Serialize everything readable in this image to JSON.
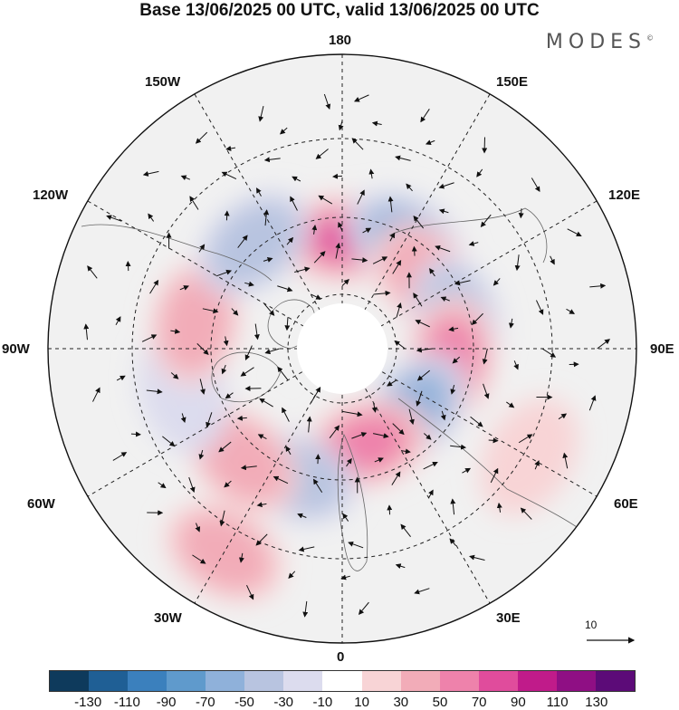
{
  "title": "Base 13/06/2025 00 UTC, valid 13/06/2025 00 UTC",
  "brand": "MODES",
  "brand_mark": "©",
  "longitude_labels": {
    "n180": "180",
    "w150": "150W",
    "e150": "150E",
    "w120": "120W",
    "e120": "120E",
    "w90": "90W",
    "e90": "90E",
    "w60": "60W",
    "e60": "60E",
    "w30": "30W",
    "e30": "30E",
    "s0": "0"
  },
  "reference_vector": "10",
  "colorbar": {
    "ticks": [
      "-130",
      "-110",
      "-90",
      "-70",
      "-50",
      "-30",
      "-10",
      "10",
      "30",
      "50",
      "70",
      "90",
      "110",
      "130"
    ],
    "colors": [
      "#0e3a5c",
      "#1f5f95",
      "#3b80bd",
      "#5f9acc",
      "#8fb1da",
      "#b8c4e0",
      "#dcdcee",
      "#ffffff",
      "#f8d4d6",
      "#f2acb8",
      "#ee82ab",
      "#e04c9c",
      "#c01b8a",
      "#8f0f84",
      "#5c0b78"
    ]
  },
  "anomaly_cells": [
    {
      "lon": 180,
      "lat": 62,
      "value": 80
    },
    {
      "lon": 150,
      "lat": 58,
      "value": -60
    },
    {
      "lon": 130,
      "lat": 62,
      "value": 50
    },
    {
      "lon": 105,
      "lat": 60,
      "value": -50
    },
    {
      "lon": 85,
      "lat": 62,
      "value": 70
    },
    {
      "lon": 50,
      "lat": 66,
      "value": -60
    },
    {
      "lon": 15,
      "lat": 65,
      "value": 75
    },
    {
      "lon": -20,
      "lat": 55,
      "value": -40
    },
    {
      "lon": -42,
      "lat": 52,
      "value": 40
    },
    {
      "lon": -75,
      "lat": 48,
      "value": -30
    },
    {
      "lon": -100,
      "lat": 52,
      "value": 50
    },
    {
      "lon": -140,
      "lat": 55,
      "value": -50
    },
    {
      "lon": -30,
      "lat": 30,
      "value": 40
    },
    {
      "lon": 60,
      "lat": 35,
      "value": 30
    }
  ]
}
